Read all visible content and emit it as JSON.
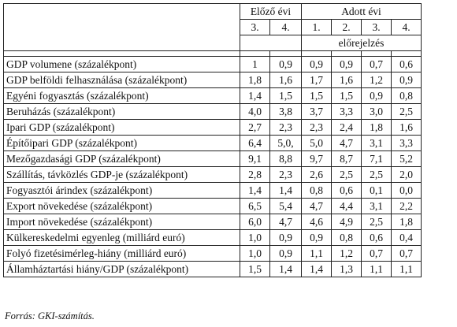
{
  "header": {
    "group_prev": "Előző évi",
    "group_curr": "Adott évi",
    "prev_quarters": [
      "3.",
      "4."
    ],
    "curr_quarters": [
      "1.",
      "2.",
      "3.",
      "4."
    ],
    "forecast_label": "előrejelzés"
  },
  "rows": [
    {
      "label": "GDP volumene (százalékpont)",
      "values": [
        "1",
        "0,9",
        "0,9",
        "0,9",
        "0,7",
        "0,6"
      ]
    },
    {
      "label": "GDP belföldi felhasználása (százalékpont)",
      "values": [
        "1,8",
        "1,6",
        "1,7",
        "1,6",
        "1,2",
        "0,9"
      ]
    },
    {
      "label": "Egyéni fogyasztás (százalékpont)",
      "values": [
        "1,4",
        "1,5",
        "1,5",
        "1,5",
        "0,9",
        "0,8"
      ]
    },
    {
      "label": "Beruházás (százalékpont)",
      "values": [
        "4,0",
        "3,8",
        "3,7",
        "3,3",
        "3,0",
        "2,5"
      ]
    },
    {
      "label": "Ipari GDP (százalékpont)",
      "values": [
        "2,7",
        "2,3",
        "2,3",
        "2,4",
        "1,8",
        "1,6"
      ]
    },
    {
      "label": "Építőipari GDP (százalékpont)",
      "values": [
        "6,4",
        "5,0,",
        "5,0",
        "4,7",
        "3,1",
        "3,3"
      ]
    },
    {
      "label": "Mezőgazdasági GDP (százalékpont)",
      "values": [
        "9,1",
        "8,8",
        "9,7",
        "8,7",
        "7,1",
        "5,2"
      ]
    },
    {
      "label": "Szállítás, távközlés GDP-je (százalékpont)",
      "values": [
        "2,8",
        "2,3",
        "2,6",
        "2,5",
        "2,5",
        "2,0"
      ]
    },
    {
      "label": "Fogyasztói árindex (százalékpont)",
      "values": [
        "1,4",
        "1,4",
        "0,8",
        "0,6",
        "0,1",
        "0,0"
      ]
    },
    {
      "label": "Export növekedése (százalékpont)",
      "values": [
        "6,5",
        "5,4",
        "4,7",
        "4,4",
        "3,1",
        "2,2"
      ]
    },
    {
      "label": "Import növekedése (százalékpont)",
      "values": [
        "6,0",
        "4,7",
        "4,6",
        "4,9",
        "2,5",
        "1,8"
      ]
    },
    {
      "label": "Külkereskedelmi egyenleg (milliárd euró)",
      "values": [
        "1,0",
        "0,9",
        "0,9",
        "0,8",
        "0,6",
        "0,4"
      ]
    },
    {
      "label": "Folyó fizetésimérleg-hiány (milliárd euró)",
      "values": [
        "1,0",
        "0,9",
        "1,1",
        "1,2",
        "0,7",
        "0,7"
      ]
    },
    {
      "label": "Államháztartási hiány/GDP (százalékpont)",
      "values": [
        "1,5",
        "1,4",
        "1,4",
        "1,3",
        "1,1",
        "1,1"
      ]
    }
  ],
  "source": "Forrás: GKI-számítás."
}
